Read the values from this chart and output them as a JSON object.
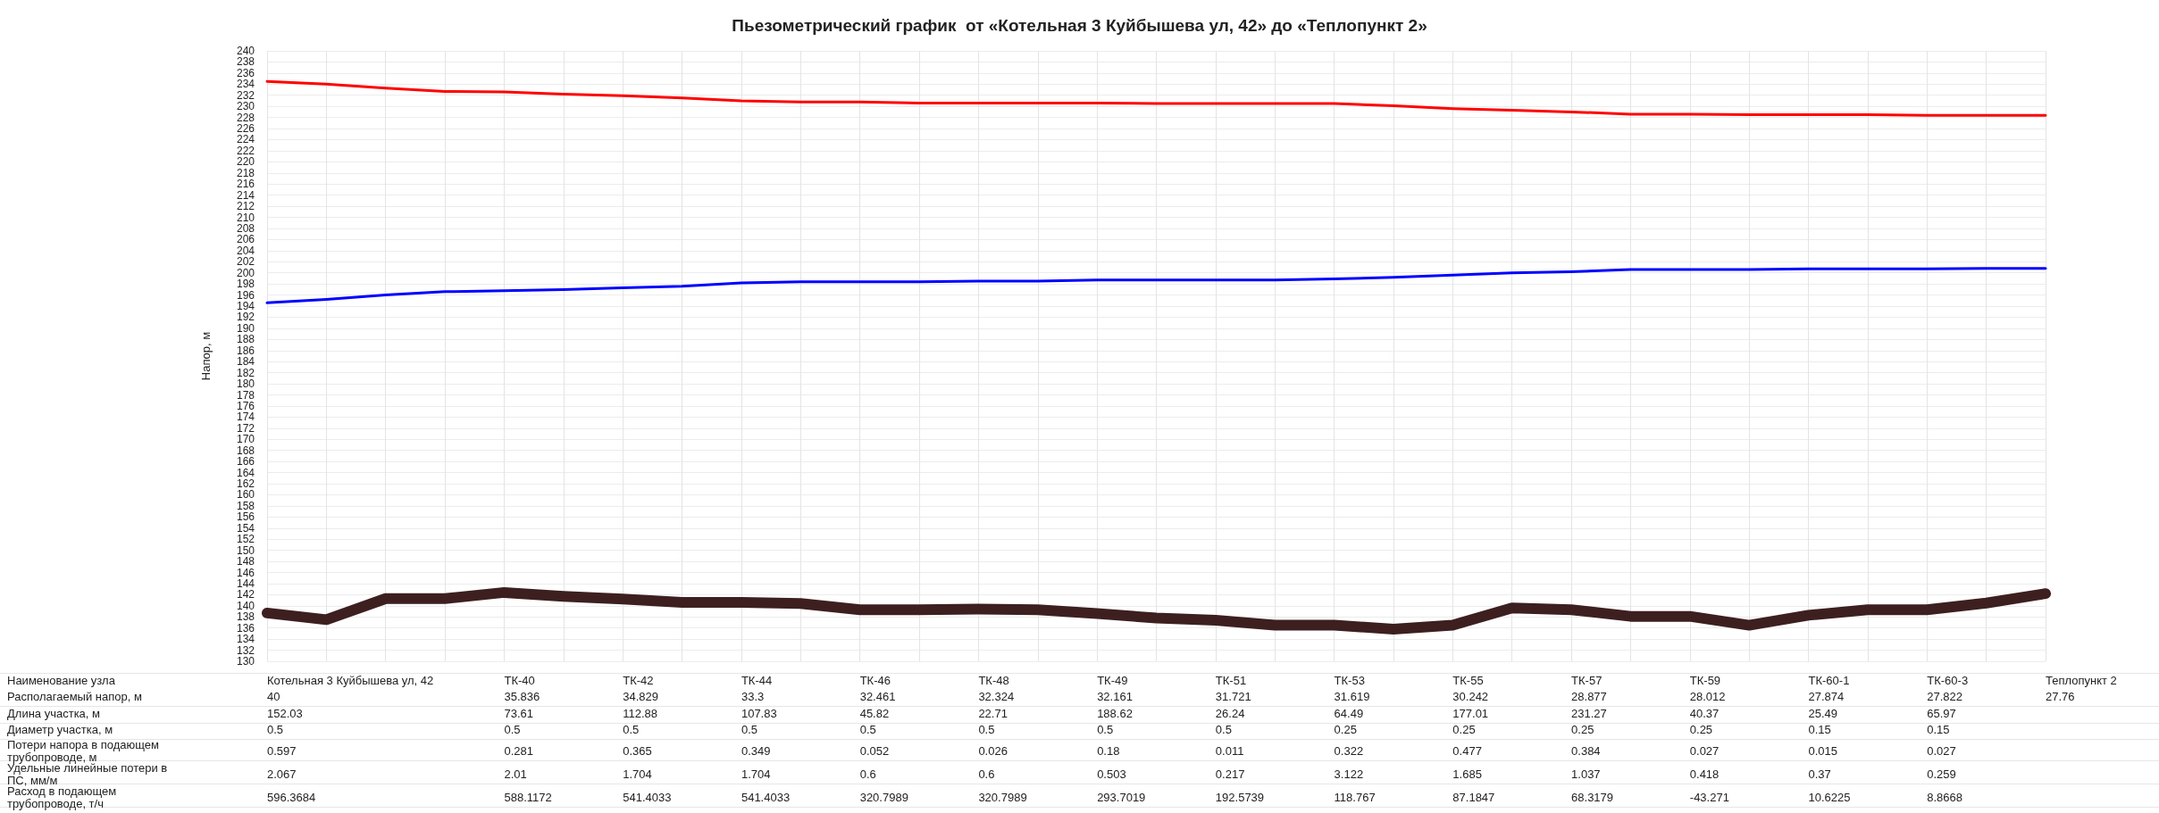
{
  "chart_data": [
    {
      "type": "line",
      "title": "Пьезометрический график  от «Котельная 3 Куйбышева ул, 42» до «Теплопункт 2»",
      "ylabel": "Напор, м",
      "categories": [
        null,
        null,
        null,
        null,
        null,
        null,
        null,
        null,
        null,
        null,
        null,
        null,
        null,
        null,
        null,
        null,
        null,
        null,
        null,
        null,
        null,
        null,
        null,
        null,
        null,
        null,
        null,
        null,
        null,
        null,
        null
      ],
      "series": [
        {
          "color": "#ff0000",
          "values": [
            234.5,
            234.0,
            233.3,
            232.7,
            232.6,
            232.2,
            231.9,
            231.5,
            231.0,
            230.8,
            230.8,
            230.6,
            230.6,
            230.6,
            230.6,
            230.5,
            230.5,
            230.5,
            230.5,
            230.1,
            229.6,
            229.3,
            229.0,
            228.6,
            228.6,
            228.5,
            228.5,
            228.5,
            228.4,
            228.4,
            228.4
          ]
        },
        {
          "color": "#0000ff",
          "values": [
            194.6,
            195.2,
            196.0,
            196.6,
            196.8,
            197.0,
            197.3,
            197.6,
            198.2,
            198.4,
            198.4,
            198.4,
            198.5,
            198.5,
            198.7,
            198.7,
            198.7,
            198.7,
            198.9,
            199.2,
            199.6,
            200.0,
            200.2,
            200.6,
            200.6,
            200.6,
            200.7,
            200.7,
            200.7,
            200.8,
            200.8
          ]
        },
        {
          "color": "#3d1f1f",
          "values": [
            138.7,
            137.5,
            141.3,
            141.3,
            142.4,
            141.7,
            141.2,
            140.6,
            140.6,
            140.4,
            139.3,
            139.3,
            139.4,
            139.3,
            138.6,
            137.8,
            137.4,
            136.5,
            136.5,
            135.8,
            136.5,
            139.6,
            139.3,
            138.1,
            138.1,
            136.5,
            138.3,
            139.3,
            139.3,
            140.5,
            142.2
          ]
        }
      ],
      "ylim": [
        130,
        240
      ],
      "yticks": [
        130,
        132,
        134,
        136,
        138,
        140,
        142,
        144,
        146,
        148,
        150,
        152,
        154,
        156,
        158,
        160,
        162,
        164,
        166,
        168,
        170,
        172,
        174,
        176,
        178,
        180,
        182,
        184,
        186,
        188,
        190,
        192,
        194,
        196,
        198,
        200,
        202,
        204,
        206,
        208,
        210,
        212,
        214,
        216,
        218,
        220,
        222,
        224,
        226,
        228,
        230,
        232,
        234,
        236,
        238,
        240
      ],
      "grid": true,
      "marker": "none",
      "line_style": "solid"
    },
    {
      "type": "other",
      "xlabel": "Наименование узла",
      "categories": [
        "Котельная 3 Куйбышева ул, 42",
        null,
        null,
        null,
        "ТК-40",
        null,
        "ТК-42",
        null,
        "ТК-44",
        null,
        "ТК-46",
        null,
        "ТК-48",
        null,
        "ТК-49",
        null,
        "ТК-51",
        null,
        "ТК-53",
        null,
        "ТК-55",
        null,
        "ТК-57",
        null,
        "ТК-59",
        null,
        "ТК-60-1",
        null,
        "ТК-60-3",
        null,
        "Теплопункт 2"
      ],
      "series": [
        {
          "name": "Располагаемый напор, м",
          "values": [
            40,
            null,
            null,
            null,
            35.836,
            null,
            34.829,
            null,
            33.3,
            null,
            32.461,
            null,
            32.324,
            null,
            32.161,
            null,
            31.721,
            null,
            31.619,
            null,
            30.242,
            null,
            28.877,
            null,
            28.012,
            null,
            27.874,
            null,
            27.822,
            null,
            27.76
          ]
        },
        {
          "name": "Длина участка, м",
          "values": [
            152.03,
            null,
            null,
            null,
            73.61,
            null,
            112.88,
            null,
            107.83,
            null,
            45.82,
            null,
            22.71,
            null,
            188.62,
            null,
            26.24,
            null,
            64.49,
            null,
            177.01,
            null,
            231.27,
            null,
            40.37,
            null,
            25.49,
            null,
            65.97,
            null,
            null
          ]
        },
        {
          "name": "Диаметр участка, м",
          "values": [
            0.5,
            null,
            null,
            null,
            0.5,
            null,
            0.5,
            null,
            0.5,
            null,
            0.5,
            null,
            0.5,
            null,
            0.5,
            null,
            0.5,
            null,
            0.25,
            null,
            0.25,
            null,
            0.25,
            null,
            0.25,
            null,
            0.15,
            null,
            0.15,
            null,
            null
          ]
        },
        {
          "name": "Потери напора в подающем трубопроводе, м",
          "values": [
            0.597,
            null,
            null,
            null,
            0.281,
            null,
            0.365,
            null,
            0.349,
            null,
            0.052,
            null,
            0.026,
            null,
            0.18,
            null,
            0.011,
            null,
            0.322,
            null,
            0.477,
            null,
            0.384,
            null,
            0.027,
            null,
            0.015,
            null,
            0.027,
            null,
            null
          ]
        },
        {
          "name": "Удельные линейные потери в ПС, мм/м",
          "values": [
            2.067,
            null,
            null,
            null,
            2.01,
            null,
            1.704,
            null,
            1.704,
            null,
            0.6,
            null,
            0.6,
            null,
            0.503,
            null,
            0.217,
            null,
            3.122,
            null,
            1.685,
            null,
            1.037,
            null,
            0.418,
            null,
            0.37,
            null,
            0.259,
            null,
            null
          ]
        },
        {
          "name": "Расход в подающем трубопроводе, т/ч",
          "values": [
            596.3684,
            null,
            null,
            null,
            588.1172,
            null,
            541.4033,
            null,
            541.4033,
            null,
            320.7989,
            null,
            320.7989,
            null,
            293.7019,
            null,
            192.5739,
            null,
            118.767,
            null,
            87.1847,
            null,
            68.3179,
            null,
            -43.271,
            null,
            10.6225,
            null,
            8.8668,
            null,
            null
          ]
        }
      ],
      "data_labels": true
    }
  ]
}
